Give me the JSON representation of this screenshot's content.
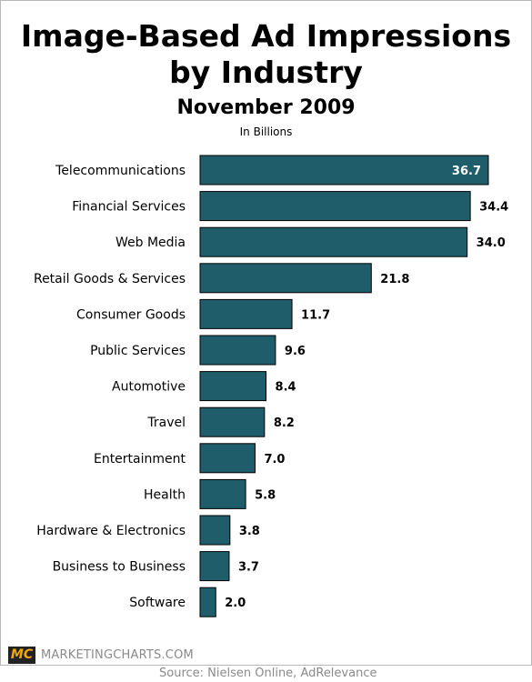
{
  "chart_data": {
    "type": "bar",
    "orientation": "horizontal",
    "title": "Image-Based Ad Impressions by Industry",
    "subtitle": "November 2009",
    "units_note": "In Billions",
    "categories": [
      "Telecommunications",
      "Financial Services",
      "Web Media",
      "Retail Goods & Services",
      "Consumer Goods",
      "Public Services",
      "Automotive",
      "Travel",
      "Entertainment",
      "Health",
      "Hardware & Electronics",
      "Business to Business",
      "Software"
    ],
    "values": [
      36.7,
      34.4,
      34.0,
      21.8,
      11.7,
      9.6,
      8.4,
      8.2,
      7.0,
      5.8,
      3.8,
      3.7,
      2.0
    ],
    "value_labels": [
      "36.7",
      "34.4",
      "34.0",
      "21.8",
      "11.7",
      "9.6",
      "8.4",
      "8.2",
      "7.0",
      "5.8",
      "3.8",
      "3.7",
      "2.0"
    ],
    "xlim": [
      0,
      36.7
    ],
    "grid": false,
    "bar_color": "#1f5d6b"
  },
  "branding": {
    "logo_text": "MC",
    "site": "MARKETINGCHARTS.COM"
  },
  "source": "Source: Nielsen Online, AdRelevance"
}
